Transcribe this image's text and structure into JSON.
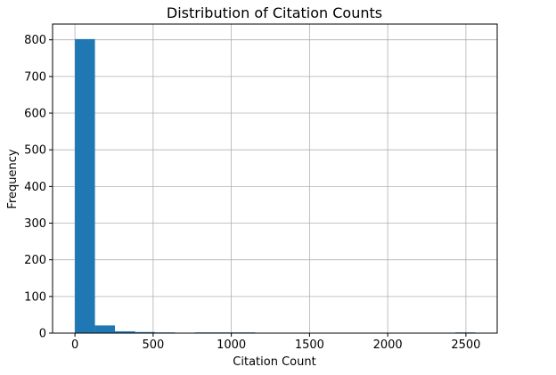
{
  "chart_data": {
    "type": "bar",
    "title": "Distribution of Citation Counts",
    "xlabel": "Citation Count",
    "ylabel": "Frequency",
    "xlim": [
      -143,
      2700
    ],
    "ylim": [
      0,
      843
    ],
    "xticks": [
      0,
      500,
      1000,
      1500,
      2000,
      2500
    ],
    "yticks": [
      0,
      100,
      200,
      300,
      400,
      500,
      600,
      700,
      800
    ],
    "grid": true,
    "bar_color": "#1f77b4",
    "bins": [
      {
        "x0": 0,
        "x1": 128,
        "value": 802
      },
      {
        "x0": 128,
        "x1": 256,
        "value": 21
      },
      {
        "x0": 256,
        "x1": 384,
        "value": 5
      },
      {
        "x0": 384,
        "x1": 512,
        "value": 3
      },
      {
        "x0": 512,
        "x1": 640,
        "value": 1
      },
      {
        "x0": 640,
        "x1": 768,
        "value": 0
      },
      {
        "x0": 768,
        "x1": 896,
        "value": 1
      },
      {
        "x0": 896,
        "x1": 1024,
        "value": 1
      },
      {
        "x0": 1024,
        "x1": 1152,
        "value": 1
      },
      {
        "x0": 1152,
        "x1": 1280,
        "value": 0
      },
      {
        "x0": 1280,
        "x1": 1408,
        "value": 0
      },
      {
        "x0": 1408,
        "x1": 1536,
        "value": 0
      },
      {
        "x0": 1536,
        "x1": 1664,
        "value": 0
      },
      {
        "x0": 1664,
        "x1": 1792,
        "value": 0
      },
      {
        "x0": 1792,
        "x1": 1920,
        "value": 0
      },
      {
        "x0": 1920,
        "x1": 2048,
        "value": 0
      },
      {
        "x0": 2048,
        "x1": 2176,
        "value": 0
      },
      {
        "x0": 2176,
        "x1": 2304,
        "value": 0
      },
      {
        "x0": 2304,
        "x1": 2432,
        "value": 0
      },
      {
        "x0": 2432,
        "x1": 2560,
        "value": 1
      }
    ]
  }
}
